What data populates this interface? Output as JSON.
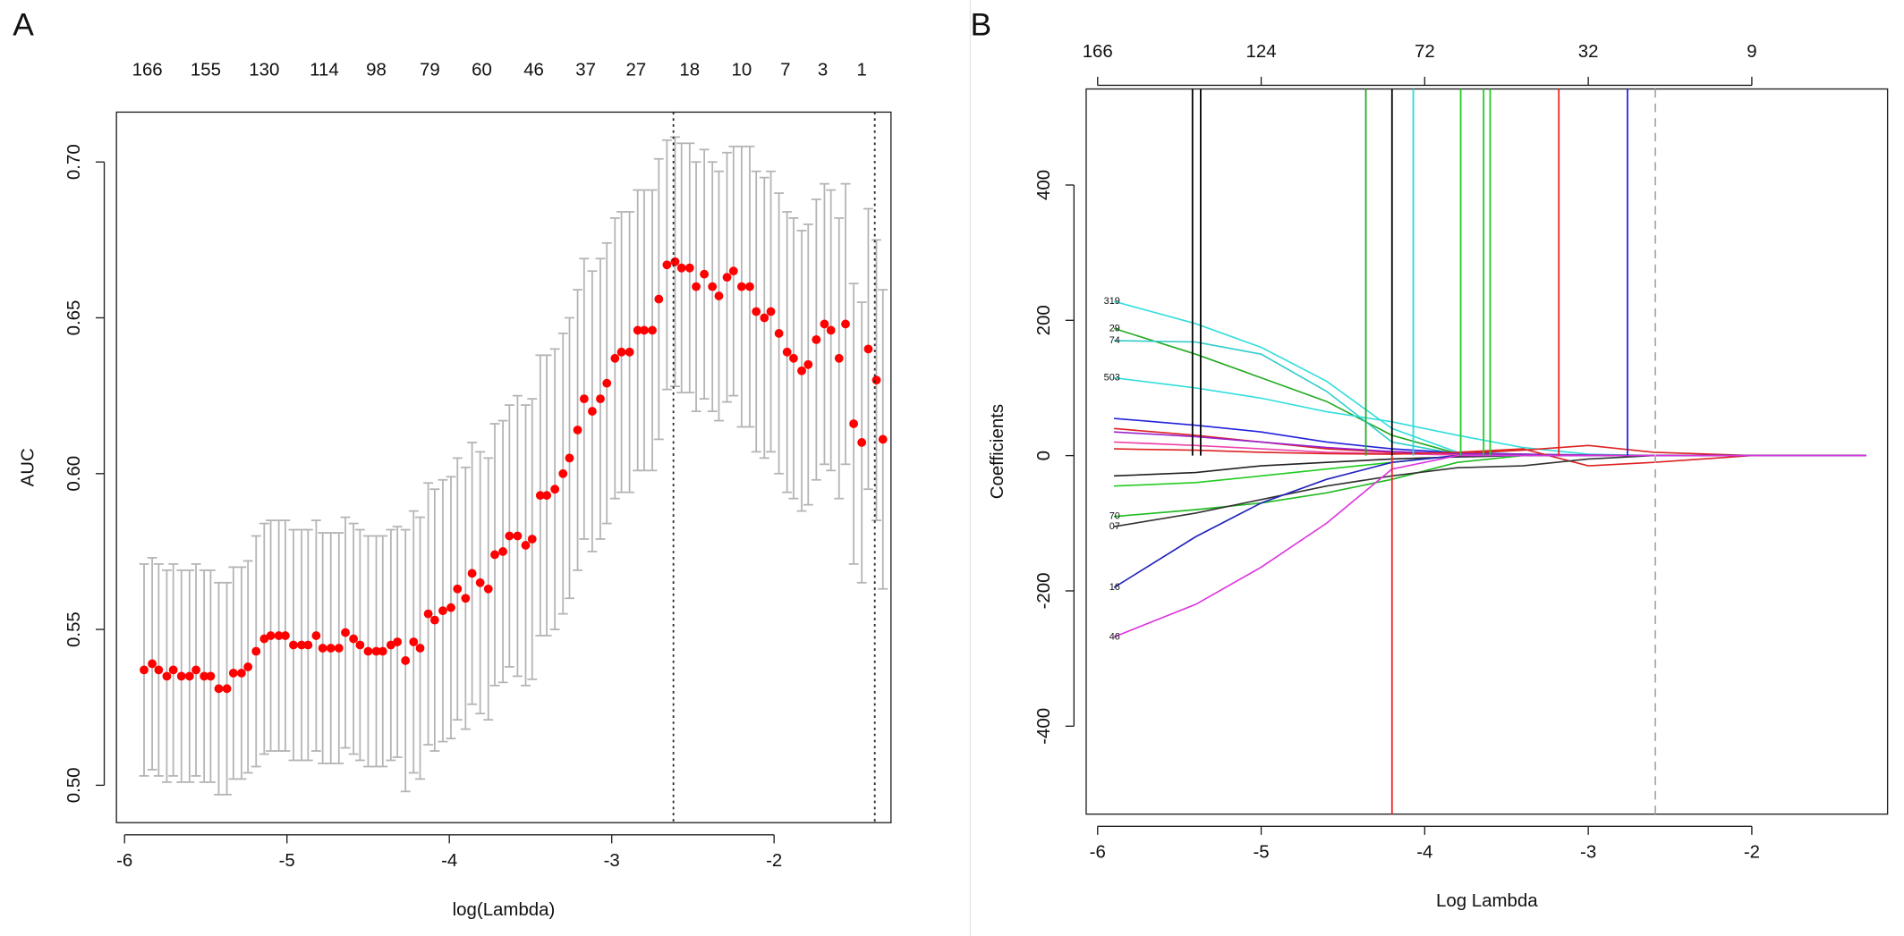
{
  "chart_data": [
    {
      "type": "scatter",
      "panel": "A",
      "xlabel": "log(Lambda)",
      "ylabel": "AUC",
      "xlim": [
        -6.05,
        -1.28
      ],
      "ylim": [
        0.488,
        0.716
      ],
      "xticks": [
        -6,
        -5,
        -4,
        -3,
        -2
      ],
      "yticks": [
        {
          "value": 0.5,
          "label": "0.50"
        },
        0.55,
        {
          "value": 0.6,
          "label": "0.60"
        },
        0.65,
        {
          "value": 0.7,
          "label": "0.70"
        }
      ],
      "top_tick_marks": false,
      "top_ticks": [
        {
          "value": -5.86,
          "label": "166"
        },
        {
          "value": -5.5,
          "label": "155"
        },
        {
          "value": -5.14,
          "label": "130"
        },
        {
          "value": -4.77,
          "label": "114"
        },
        {
          "value": -4.45,
          "label": "98"
        },
        {
          "value": -4.12,
          "label": "79"
        },
        {
          "value": -3.8,
          "label": "60"
        },
        {
          "value": -3.48,
          "label": "46"
        },
        {
          "value": -3.16,
          "label": "37"
        },
        {
          "value": -2.85,
          "label": "27"
        },
        {
          "value": -2.52,
          "label": "18"
        },
        {
          "value": -2.2,
          "label": "10"
        },
        {
          "value": -1.93,
          "label": "7"
        },
        {
          "value": -1.7,
          "label": "3"
        },
        {
          "value": -1.46,
          "label": "1"
        }
      ],
      "color": "#ff0000",
      "error_color": "#b4b4b4",
      "vlines": [
        {
          "x": -2.62,
          "color": "#222222",
          "style": "dotted"
        },
        {
          "x": -1.38,
          "color": "#222222",
          "style": "dotted"
        }
      ],
      "x": [
        -5.88,
        -5.83,
        -5.79,
        -5.74,
        -5.7,
        -5.65,
        -5.6,
        -5.56,
        -5.51,
        -5.47,
        -5.42,
        -5.37,
        -5.33,
        -5.28,
        -5.24,
        -5.19,
        -5.14,
        -5.1,
        -5.05,
        -5.01,
        -4.96,
        -4.91,
        -4.87,
        -4.82,
        -4.78,
        -4.73,
        -4.68,
        -4.64,
        -4.59,
        -4.55,
        -4.5,
        -4.45,
        -4.41,
        -4.36,
        -4.32,
        -4.27,
        -4.22,
        -4.18,
        -4.13,
        -4.09,
        -4.04,
        -3.99,
        -3.95,
        -3.9,
        -3.86,
        -3.81,
        -3.76,
        -3.72,
        -3.67,
        -3.63,
        -3.58,
        -3.53,
        -3.49,
        -3.44,
        -3.4,
        -3.35,
        -3.3,
        -3.26,
        -3.21,
        -3.17,
        -3.12,
        -3.07,
        -3.03,
        -2.98,
        -2.94,
        -2.89,
        -2.84,
        -2.8,
        -2.75,
        -2.71,
        -2.66,
        -2.61,
        -2.57,
        -2.52,
        -2.48,
        -2.43,
        -2.38,
        -2.34,
        -2.29,
        -2.25,
        -2.2,
        -2.15,
        -2.11,
        -2.06,
        -2.02,
        -1.97,
        -1.92,
        -1.88,
        -1.83,
        -1.79,
        -1.74,
        -1.69,
        -1.65,
        -1.6,
        -1.56,
        -1.51,
        -1.46,
        -1.42,
        -1.37,
        -1.33
      ],
      "values": [
        0.537,
        0.539,
        0.537,
        0.535,
        0.537,
        0.535,
        0.535,
        0.537,
        0.535,
        0.535,
        0.531,
        0.531,
        0.536,
        0.536,
        0.538,
        0.543,
        0.547,
        0.548,
        0.548,
        0.548,
        0.545,
        0.545,
        0.545,
        0.548,
        0.544,
        0.544,
        0.544,
        0.549,
        0.547,
        0.545,
        0.543,
        0.543,
        0.543,
        0.545,
        0.546,
        0.54,
        0.546,
        0.544,
        0.555,
        0.553,
        0.556,
        0.557,
        0.563,
        0.56,
        0.568,
        0.565,
        0.563,
        0.574,
        0.575,
        0.58,
        0.58,
        0.577,
        0.579,
        0.593,
        0.593,
        0.595,
        0.6,
        0.605,
        0.614,
        0.624,
        0.62,
        0.624,
        0.629,
        0.637,
        0.639,
        0.639,
        0.646,
        0.646,
        0.646,
        0.656,
        0.667,
        0.668,
        0.666,
        0.666,
        0.66,
        0.664,
        0.66,
        0.657,
        0.663,
        0.665,
        0.66,
        0.66,
        0.652,
        0.65,
        0.652,
        0.645,
        0.639,
        0.637,
        0.633,
        0.635,
        0.643,
        0.648,
        0.646,
        0.637,
        0.648,
        0.616,
        0.61,
        0.64,
        0.63,
        0.611
      ],
      "errors": [
        0.034,
        0.034,
        0.034,
        0.034,
        0.034,
        0.034,
        0.034,
        0.034,
        0.034,
        0.034,
        0.034,
        0.034,
        0.034,
        0.034,
        0.034,
        0.037,
        0.037,
        0.037,
        0.037,
        0.037,
        0.037,
        0.037,
        0.037,
        0.037,
        0.037,
        0.037,
        0.037,
        0.037,
        0.037,
        0.037,
        0.037,
        0.037,
        0.037,
        0.037,
        0.037,
        0.042,
        0.042,
        0.042,
        0.042,
        0.042,
        0.042,
        0.042,
        0.042,
        0.042,
        0.042,
        0.042,
        0.042,
        0.042,
        0.042,
        0.042,
        0.045,
        0.045,
        0.045,
        0.045,
        0.045,
        0.045,
        0.045,
        0.045,
        0.045,
        0.045,
        0.045,
        0.045,
        0.045,
        0.045,
        0.045,
        0.045,
        0.045,
        0.045,
        0.045,
        0.045,
        0.04,
        0.04,
        0.04,
        0.04,
        0.04,
        0.04,
        0.04,
        0.04,
        0.04,
        0.04,
        0.045,
        0.045,
        0.045,
        0.045,
        0.045,
        0.045,
        0.045,
        0.045,
        0.045,
        0.045,
        0.045,
        0.045,
        0.045,
        0.045,
        0.045,
        0.045,
        0.045,
        0.045,
        0.045,
        0.048
      ]
    },
    {
      "type": "line",
      "panel": "B",
      "xlabel": "Log Lambda",
      "ylabel": "Coefficients",
      "xlim": [
        -6.07,
        -1.17
      ],
      "ylim": [
        -530,
        542
      ],
      "xticks": [
        -6,
        -5,
        -4,
        -3,
        -2
      ],
      "yticks": [
        -400,
        -200,
        0,
        200,
        400
      ],
      "top_tick_marks": true,
      "top_ticks": [
        {
          "value": -6,
          "label": "166"
        },
        {
          "value": -5,
          "label": "124"
        },
        {
          "value": -4,
          "label": "72"
        },
        {
          "value": -3,
          "label": "32"
        },
        {
          "value": -2,
          "label": "9"
        }
      ],
      "vlines": [
        {
          "x": -5.42,
          "color": "#000000",
          "style": "solid",
          "to": "top"
        },
        {
          "x": -5.37,
          "color": "#000000",
          "style": "solid",
          "to": "top"
        },
        {
          "x": -4.36,
          "color": "#22aa22",
          "style": "solid",
          "to": "top"
        },
        {
          "x": -4.2,
          "color": "#000000",
          "style": "solid",
          "to": "top"
        },
        {
          "x": -4.07,
          "color": "#22dddd",
          "style": "solid",
          "to": "top"
        },
        {
          "x": -3.78,
          "color": "#22cc22",
          "style": "solid",
          "to": "top"
        },
        {
          "x": -3.64,
          "color": "#22cc22",
          "style": "solid",
          "to": "top"
        },
        {
          "x": -3.6,
          "color": "#22cc22",
          "style": "solid",
          "to": "top"
        },
        {
          "x": -3.18,
          "color": "#ee2222",
          "style": "solid",
          "to": "top"
        },
        {
          "x": -2.76,
          "color": "#2222ee",
          "style": "solid",
          "to": "top"
        },
        {
          "x": -4.2,
          "color": "#ee2222",
          "style": "solid",
          "to": "bottom"
        },
        {
          "x": -2.59,
          "color": "#aaaaaa",
          "style": "dashed"
        }
      ],
      "x": [
        -5.9,
        -5.4,
        -5.0,
        -4.6,
        -4.2,
        -3.8,
        -3.4,
        -3.0,
        -2.6,
        -2.0,
        -1.3
      ],
      "series": [
        {
          "label": "319",
          "color": "#33dddd",
          "values": [
            228,
            195,
            160,
            110,
            40,
            5,
            2,
            1,
            0,
            0,
            0
          ]
        },
        {
          "label": "29",
          "color": "#22aa22",
          "values": [
            188,
            150,
            115,
            80,
            30,
            3,
            0,
            0,
            0,
            0,
            0
          ]
        },
        {
          "label": "74",
          "color": "#33cccc",
          "values": [
            170,
            168,
            150,
            95,
            20,
            2,
            0,
            0,
            0,
            0,
            0
          ]
        },
        {
          "label": "503",
          "color": "#33dddd",
          "values": [
            115,
            100,
            85,
            65,
            50,
            30,
            12,
            2,
            0,
            0,
            0
          ]
        },
        {
          "color": "#2222dd",
          "values": [
            55,
            45,
            35,
            20,
            10,
            4,
            2,
            0,
            0,
            0,
            0
          ]
        },
        {
          "color": "#dd2222",
          "values": [
            40,
            30,
            20,
            10,
            5,
            3,
            8,
            15,
            5,
            0,
            0
          ]
        },
        {
          "color": "#9922cc",
          "values": [
            35,
            28,
            20,
            12,
            6,
            3,
            2,
            1,
            0,
            0,
            0
          ]
        },
        {
          "color": "#ee44aa",
          "values": [
            20,
            15,
            10,
            5,
            3,
            1,
            0,
            0,
            0,
            0,
            0
          ]
        },
        {
          "color": "#dd2222",
          "values": [
            10,
            8,
            5,
            3,
            2,
            5,
            10,
            -15,
            -10,
            0,
            0
          ]
        },
        {
          "color": "#222222",
          "values": [
            -30,
            -25,
            -15,
            -10,
            -5,
            -2,
            0,
            0,
            0,
            0,
            0
          ]
        },
        {
          "color": "#22cc22",
          "values": [
            -45,
            -40,
            -30,
            -20,
            -10,
            0,
            0,
            0,
            0,
            0,
            0
          ]
        },
        {
          "label": "70",
          "color": "#22bb22",
          "values": [
            -90,
            -80,
            -70,
            -55,
            -35,
            -10,
            0,
            0,
            0,
            0,
            0
          ]
        },
        {
          "label": "07",
          "color": "#333333",
          "values": [
            -105,
            -85,
            -65,
            -45,
            -30,
            -18,
            -15,
            -5,
            0,
            0,
            0
          ]
        },
        {
          "label": "16",
          "color": "#2222bb",
          "values": [
            -195,
            -120,
            -70,
            -35,
            -10,
            0,
            0,
            0,
            0,
            0,
            0
          ]
        },
        {
          "label": "46",
          "color": "#dd33dd",
          "values": [
            -268,
            -220,
            -165,
            -100,
            -20,
            0,
            0,
            0,
            0,
            0,
            0
          ]
        }
      ]
    }
  ]
}
